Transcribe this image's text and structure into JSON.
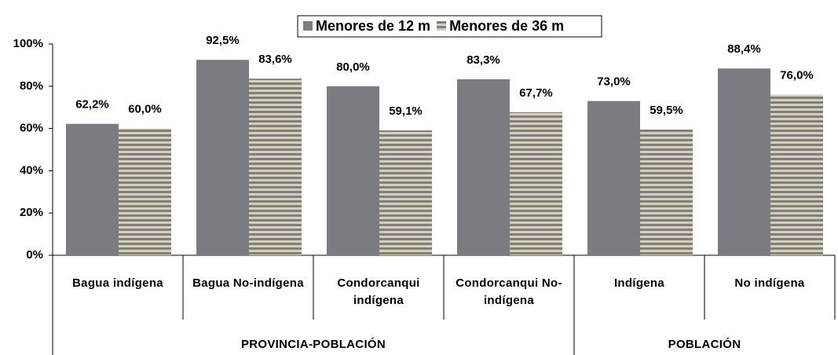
{
  "chart_data": {
    "type": "bar",
    "categories": [
      "Bagua indígena",
      "Bagua No-indígena",
      "Condorcanqui indígena",
      "Condorcanqui No-indígena",
      "Indígena",
      "No indígena"
    ],
    "groups": [
      {
        "label": "PROVINCIA-POBLACIÓN",
        "size": 4
      },
      {
        "label": "POBLACIÓN",
        "size": 2
      }
    ],
    "series": [
      {
        "name": "Menores de 12 m",
        "color": "#7b7b82",
        "values": [
          62.2,
          92.5,
          80.0,
          83.3,
          73.0,
          88.4
        ],
        "value_labels": [
          "62,2%",
          "92,5%",
          "80,0%",
          "83,3%",
          "73,0%",
          "88,4%"
        ]
      },
      {
        "name": "Menores de 36 m",
        "color": "#d6cfb8",
        "stripe_color": "#7f7f7f",
        "pattern": "horizontal-stripes",
        "values": [
          60.0,
          83.6,
          59.1,
          67.7,
          59.5,
          76.0
        ],
        "value_labels": [
          "60,0%",
          "83,6%",
          "59,1%",
          "67,7%",
          "59,5%",
          "76,0%"
        ]
      }
    ],
    "ylim": [
      0,
      100
    ],
    "yticks": [
      {
        "value": 0,
        "label": "0%"
      },
      {
        "value": 20,
        "label": "20%"
      },
      {
        "value": 40,
        "label": "40%"
      },
      {
        "value": 60,
        "label": "60%"
      },
      {
        "value": 80,
        "label": "80%"
      },
      {
        "value": 100,
        "label": "100%"
      }
    ],
    "legend": "top"
  }
}
